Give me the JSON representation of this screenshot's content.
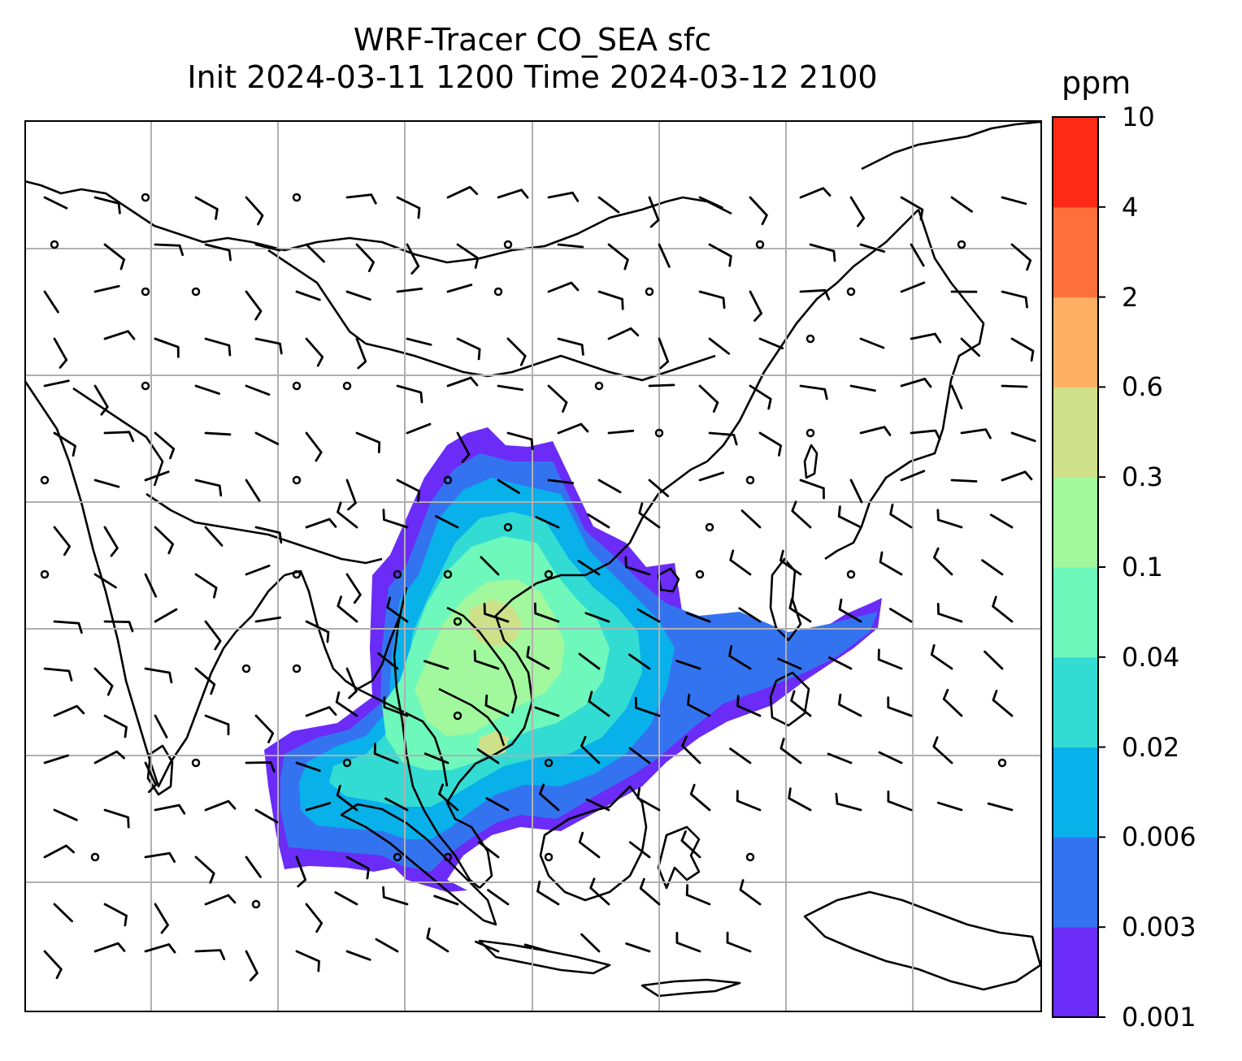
{
  "title": {
    "line1": "WRF-Tracer CO_SEA sfc",
    "line2": "Init 2024-03-11 1200 Time 2024-03-12 2100"
  },
  "colorbar": {
    "unit": "ppm",
    "levels": [
      "0.001",
      "0.003",
      "0.006",
      "0.02",
      "0.04",
      "0.1",
      "0.3",
      "0.6",
      "2",
      "4",
      "10"
    ],
    "colors": [
      "#6a2cf6",
      "#3473f0",
      "#09b1ea",
      "#33dcd2",
      "#6ef8bb",
      "#a2f89d",
      "#cfe08a",
      "#fdb064",
      "#fd703b",
      "#fd2a16"
    ]
  },
  "map": {
    "land_outline_color": "#000000",
    "grid_color": "#b0b0b0",
    "wind_barb_color": "#000000"
  }
}
